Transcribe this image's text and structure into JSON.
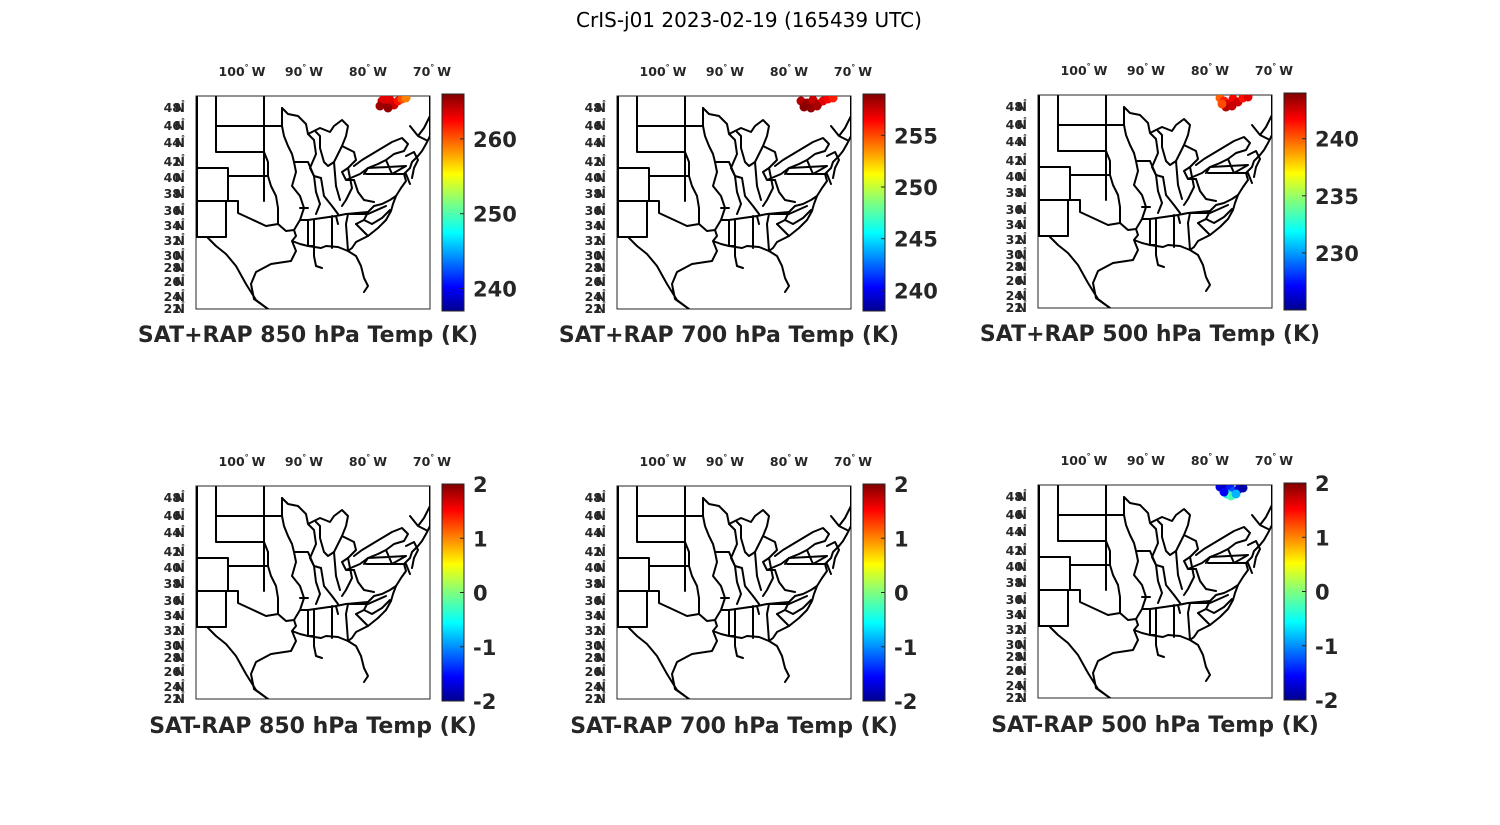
{
  "figure": {
    "title": "CrIS-j01 2023-02-19 (165439 UTC)"
  },
  "axes": {
    "lon_ticks": [
      {
        "value": "100",
        "deg": "°",
        "hem": "W"
      },
      {
        "value": "90",
        "deg": "°",
        "hem": "W"
      },
      {
        "value": "80",
        "deg": "°",
        "hem": "W"
      },
      {
        "value": "70",
        "deg": "°",
        "hem": "W"
      }
    ],
    "lat_ticks": [
      {
        "value": "48",
        "deg": "°",
        "hem": "N"
      },
      {
        "value": "46",
        "deg": "°",
        "hem": "N"
      },
      {
        "value": "44",
        "deg": "°",
        "hem": "N"
      },
      {
        "value": "42",
        "deg": "°",
        "hem": "N"
      },
      {
        "value": "40",
        "deg": "°",
        "hem": "N"
      },
      {
        "value": "38",
        "deg": "°",
        "hem": "N"
      },
      {
        "value": "36",
        "deg": "°",
        "hem": "N"
      },
      {
        "value": "34",
        "deg": "°",
        "hem": "N"
      },
      {
        "value": "32",
        "deg": "°",
        "hem": "N"
      },
      {
        "value": "30",
        "deg": "°",
        "hem": "N"
      },
      {
        "value": "28",
        "deg": "°",
        "hem": "N"
      },
      {
        "value": "26",
        "deg": "°",
        "hem": "N"
      },
      {
        "value": "24",
        "deg": "°",
        "hem": "N"
      },
      {
        "value": "22",
        "deg": "°",
        "hem": "N"
      }
    ]
  },
  "colormap": "jet",
  "panels": [
    {
      "title": "SAT+RAP 850 hPa Temp (K)",
      "colorbar": {
        "ticks": [
          "260",
          "250",
          "240"
        ]
      },
      "clim": [
        237,
        266
      ],
      "dots": "warm-a"
    },
    {
      "title": "SAT+RAP 700 hPa Temp (K)",
      "colorbar": {
        "ticks": [
          "255",
          "250",
          "245",
          "240"
        ]
      },
      "clim": [
        238,
        259
      ],
      "dots": "warm-b"
    },
    {
      "title": "SAT+RAP 500 hPa Temp (K)",
      "colorbar": {
        "ticks": [
          "240",
          "235",
          "230"
        ]
      },
      "clim": [
        225,
        244
      ],
      "dots": "warm-c"
    },
    {
      "title": "SAT-RAP 850 hPa Temp (K)",
      "colorbar": {
        "ticks": [
          "2",
          "1",
          "0",
          "-1",
          "-2"
        ]
      },
      "clim": [
        -2,
        2
      ],
      "dots": "none"
    },
    {
      "title": "SAT-RAP 700 hPa Temp (K)",
      "colorbar": {
        "ticks": [
          "2",
          "1",
          "0",
          "-1",
          "-2"
        ]
      },
      "clim": [
        -2,
        2
      ],
      "dots": "none"
    },
    {
      "title": "SAT-RAP 500 hPa Temp (K)",
      "colorbar": {
        "ticks": [
          "2",
          "1",
          "0",
          "-1",
          "-2"
        ]
      },
      "clim": [
        -2,
        2
      ],
      "dots": "diff"
    }
  ]
}
